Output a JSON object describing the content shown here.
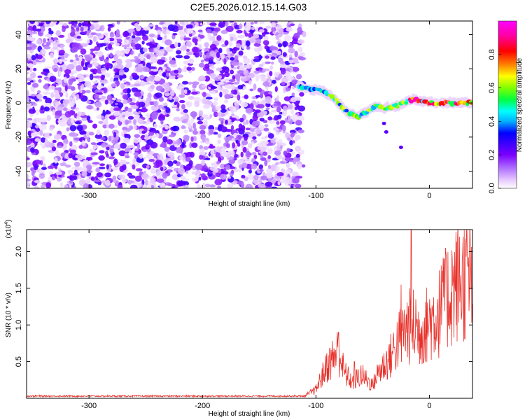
{
  "title": "C2E5.2026.012.15.14.G03",
  "chart_data": [
    {
      "type": "heatmap",
      "xlabel": "Height of straight line (km)",
      "ylabel": "Frequency (Hz)",
      "xlim": [
        -355,
        38
      ],
      "ylim": [
        -50,
        48
      ],
      "x_ticks": [
        -300,
        -200,
        -100,
        0
      ],
      "y_ticks": [
        -40,
        -20,
        0,
        20,
        40
      ],
      "colorbar": {
        "label": "Normalized spectral amplitude",
        "ticks": [
          "0.0",
          "0.2",
          "0.4",
          "0.6",
          "0.8"
        ],
        "range": [
          0,
          1
        ],
        "colormap": [
          "#ffffff",
          "#e6c8ff",
          "#b070ff",
          "#7a00ff",
          "#3a00ff",
          "#0000ff",
          "#00b0ff",
          "#00ffff",
          "#00ff40",
          "#80ff00",
          "#ffff00",
          "#ff8000",
          "#ff0000",
          "#ff00a0",
          "#ff00ff"
        ]
      },
      "noise_region": {
        "x": [
          -355,
          -108
        ],
        "y": [
          -50,
          48
        ]
      },
      "signal_ridge": [
        {
          "x": -115,
          "y": 10
        },
        {
          "x": -105,
          "y": 8
        },
        {
          "x": -95,
          "y": 7
        },
        {
          "x": -88,
          "y": 5
        },
        {
          "x": -80,
          "y": 0
        },
        {
          "x": -72,
          "y": -6
        },
        {
          "x": -62,
          "y": -8
        },
        {
          "x": -55,
          "y": -5
        },
        {
          "x": -48,
          "y": -2
        },
        {
          "x": -40,
          "y": -3
        },
        {
          "x": -30,
          "y": -2
        },
        {
          "x": -22,
          "y": 0
        },
        {
          "x": -15,
          "y": 2
        },
        {
          "x": -5,
          "y": 1
        },
        {
          "x": 5,
          "y": 0
        },
        {
          "x": 15,
          "y": 0
        },
        {
          "x": 25,
          "y": 0
        },
        {
          "x": 38,
          "y": 0
        }
      ]
    },
    {
      "type": "line",
      "xlabel": "Height of straight line (km)",
      "ylabel": "SNR (10 * v/v)",
      "y_multiplier": "(x10",
      "y_multiplier_exp": "4",
      "y_multiplier_close": ")",
      "xlim": [
        -355,
        38
      ],
      "ylim": [
        0,
        2.3
      ],
      "x_ticks": [
        -300,
        -200,
        -100,
        0
      ],
      "y_ticks": [
        0.5,
        1.0,
        1.5,
        2.0
      ],
      "series": [
        {
          "color": "#e8302a",
          "envelope": [
            {
              "x": -355,
              "y": 0.03
            },
            {
              "x": -110,
              "y": 0.03
            },
            {
              "x": -100,
              "y": 0.12
            },
            {
              "x": -90,
              "y": 0.45
            },
            {
              "x": -80,
              "y": 0.65
            },
            {
              "x": -75,
              "y": 0.35
            },
            {
              "x": -68,
              "y": 0.22
            },
            {
              "x": -60,
              "y": 0.32
            },
            {
              "x": -55,
              "y": 0.25
            },
            {
              "x": -50,
              "y": 0.18
            },
            {
              "x": -45,
              "y": 0.35
            },
            {
              "x": -40,
              "y": 0.45
            },
            {
              "x": -35,
              "y": 0.55
            },
            {
              "x": -30,
              "y": 0.7
            },
            {
              "x": -25,
              "y": 0.85
            },
            {
              "x": -20,
              "y": 0.95
            },
            {
              "x": -15,
              "y": 1.0
            },
            {
              "x": -10,
              "y": 0.9
            },
            {
              "x": -5,
              "y": 0.95
            },
            {
              "x": 0,
              "y": 1.05
            },
            {
              "x": 5,
              "y": 1.1
            },
            {
              "x": 10,
              "y": 1.2
            },
            {
              "x": 15,
              "y": 1.35
            },
            {
              "x": 20,
              "y": 1.5
            },
            {
              "x": 25,
              "y": 1.58
            },
            {
              "x": 30,
              "y": 1.62
            },
            {
              "x": 38,
              "y": 1.65
            }
          ],
          "peaks": [
            {
              "x": -80,
              "y": 0.9
            },
            {
              "x": -66,
              "y": 0.5
            },
            {
              "x": -25,
              "y": 1.55
            },
            {
              "x": -16,
              "y": 2.3
            },
            {
              "x": -12,
              "y": 1.35
            },
            {
              "x": 13,
              "y": 1.9
            }
          ]
        }
      ]
    }
  ]
}
